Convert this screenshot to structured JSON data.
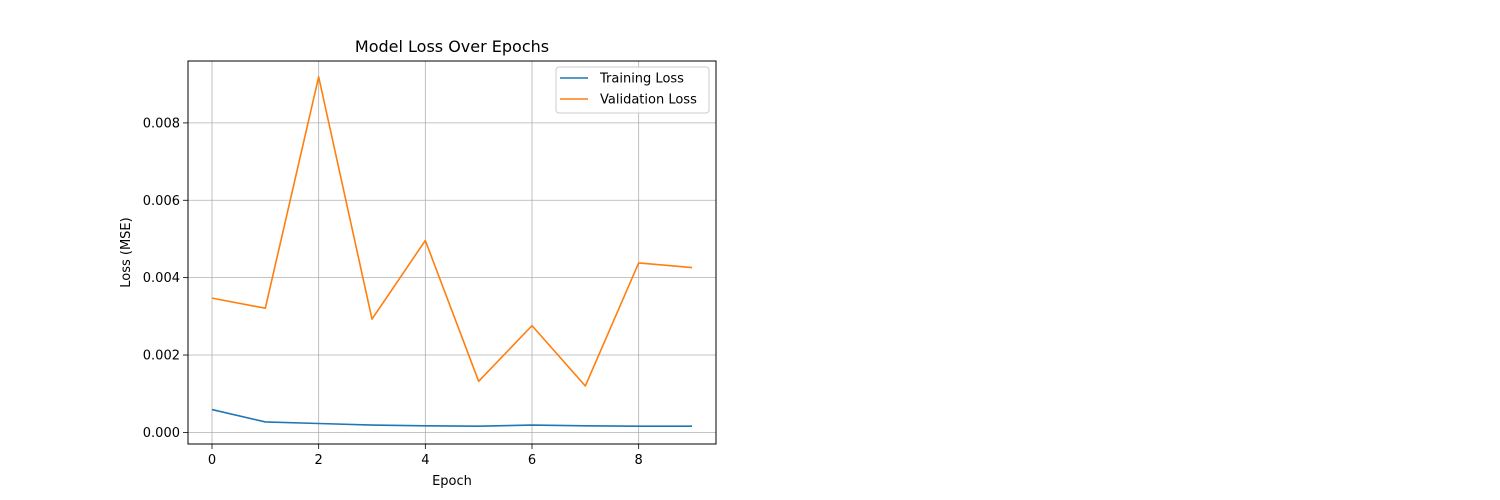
{
  "chart_data": {
    "type": "line",
    "title": "Model Loss Over Epochs",
    "xlabel": "Epoch",
    "ylabel": "Loss (MSE)",
    "x": [
      0,
      1,
      2,
      3,
      4,
      5,
      6,
      7,
      8,
      9
    ],
    "xlim": [
      -0.45,
      9.45
    ],
    "ylim": [
      -0.0003,
      0.0096
    ],
    "xticks": [
      0,
      2,
      4,
      6,
      8
    ],
    "yticks": [
      0.0,
      0.002,
      0.004,
      0.006,
      0.008
    ],
    "xtick_labels": [
      "0",
      "2",
      "4",
      "6",
      "8"
    ],
    "ytick_labels": [
      "0.000",
      "0.002",
      "0.004",
      "0.006",
      "0.008"
    ],
    "grid": true,
    "legend_position": "top-right",
    "series": [
      {
        "name": "Training Loss",
        "color": "#1f77b4",
        "values": [
          0.00059,
          0.00027,
          0.00023,
          0.00019,
          0.00017,
          0.00016,
          0.00019,
          0.00017,
          0.00016,
          0.00016
        ]
      },
      {
        "name": "Validation Loss",
        "color": "#ff7f0e",
        "values": [
          0.00347,
          0.00321,
          0.00919,
          0.00293,
          0.00496,
          0.00132,
          0.00276,
          0.0012,
          0.00438,
          0.00426
        ]
      }
    ]
  }
}
